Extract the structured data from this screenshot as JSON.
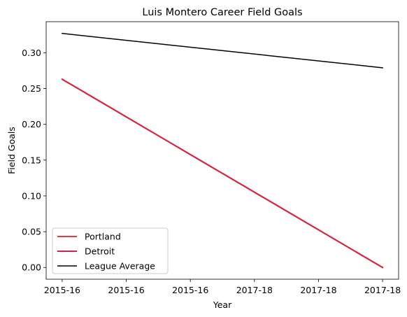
{
  "chart_data": {
    "type": "line",
    "title": "Luis Montero Career Field Goals",
    "xlabel": "Year",
    "ylabel": "Field Goals",
    "x_tick_labels": [
      "2015-16",
      "2015-16",
      "2015-16",
      "2017-18",
      "2017-18",
      "2017-18"
    ],
    "xlim": [
      -0.25,
      5.25
    ],
    "ylim": [
      -0.0164,
      0.3434
    ],
    "y_ticks": [
      0.0,
      0.05,
      0.1,
      0.15,
      0.2,
      0.25,
      0.3
    ],
    "y_tick_labels": [
      "0.00",
      "0.05",
      "0.10",
      "0.15",
      "0.20",
      "0.25",
      "0.30"
    ],
    "grid": false,
    "legend_position": "lower-left",
    "series": [
      {
        "name": "Portland",
        "color": "#e03c3c",
        "line_width": 2,
        "points": [
          [
            0,
            0.263
          ],
          [
            5,
            0.0
          ]
        ]
      },
      {
        "name": "Detroit",
        "color": "#d9213f",
        "line_width": 2,
        "points": [
          [
            0,
            0.263
          ],
          [
            5,
            0.0
          ]
        ]
      },
      {
        "name": "League Average",
        "color": "#000000",
        "line_width": 1.5,
        "points": [
          [
            0,
            0.327
          ],
          [
            5,
            0.279
          ]
        ]
      }
    ]
  }
}
